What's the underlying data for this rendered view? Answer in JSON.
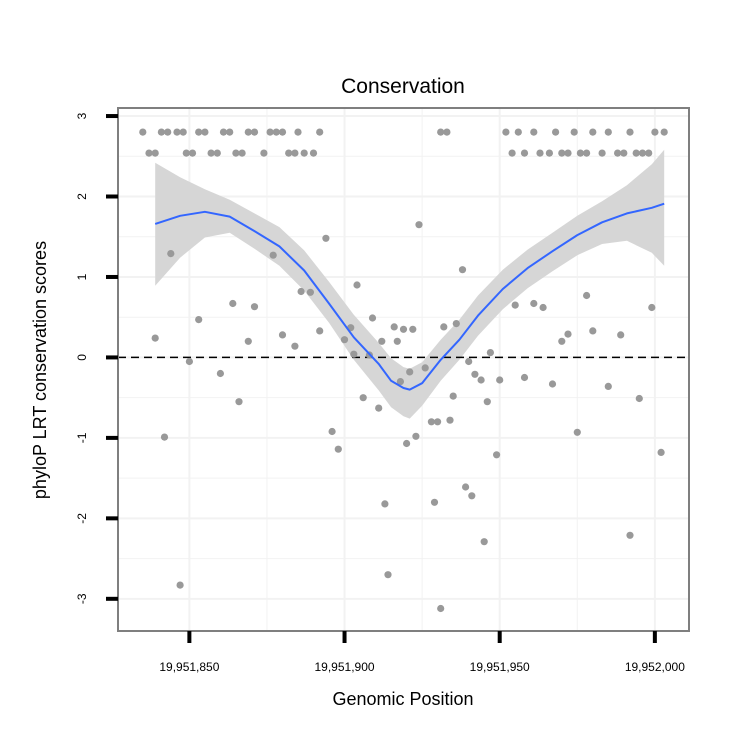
{
  "chart_data": {
    "type": "scatter",
    "title": "Conservation",
    "xlabel": "Genomic Position",
    "ylabel": "phyloP LRT conservation scores",
    "xlim": [
      19951827,
      19952011
    ],
    "ylim": [
      -3.4,
      3.1
    ],
    "x_ticks": [
      19951850,
      19951900,
      19951950,
      19952000
    ],
    "x_tick_labels": [
      "19,951,850",
      "19,951,900",
      "19,951,950",
      "19,952,000"
    ],
    "y_ticks": [
      -3,
      -2,
      -1,
      0,
      1,
      2,
      3
    ],
    "y_tick_labels": [
      "-3",
      "-2",
      "-1",
      "0",
      "1",
      "2",
      "3"
    ],
    "reference_line": {
      "y": 0,
      "style": "dashed"
    },
    "colors": {
      "points": "#999999",
      "smooth_line": "#3366FF",
      "confidence_band": "#d6d6d6",
      "grid": "#f2f2f2",
      "panel_border": "#7f7f7f"
    },
    "points": [
      [
        19951835,
        2.8
      ],
      [
        19951837,
        2.54
      ],
      [
        19951839,
        2.54
      ],
      [
        19951841,
        2.8
      ],
      [
        19951843,
        2.8
      ],
      [
        19951846,
        2.8
      ],
      [
        19951848,
        2.8
      ],
      [
        19951849,
        2.54
      ],
      [
        19951851,
        2.54
      ],
      [
        19951853,
        2.8
      ],
      [
        19951855,
        2.8
      ],
      [
        19951857,
        2.54
      ],
      [
        19951859,
        2.54
      ],
      [
        19951861,
        2.8
      ],
      [
        19951863,
        2.8
      ],
      [
        19951865,
        2.54
      ],
      [
        19951867,
        2.54
      ],
      [
        19951869,
        2.8
      ],
      [
        19951871,
        2.8
      ],
      [
        19951874,
        2.54
      ],
      [
        19951876,
        2.8
      ],
      [
        19951878,
        2.8
      ],
      [
        19951880,
        2.8
      ],
      [
        19951882,
        2.54
      ],
      [
        19951884,
        2.54
      ],
      [
        19951885,
        2.8
      ],
      [
        19951887,
        2.54
      ],
      [
        19951890,
        2.54
      ],
      [
        19951892,
        2.8
      ],
      [
        19951931,
        2.8
      ],
      [
        19951933,
        2.8
      ],
      [
        19951952,
        2.8
      ],
      [
        19951954,
        2.54
      ],
      [
        19951956,
        2.8
      ],
      [
        19951958,
        2.54
      ],
      [
        19951961,
        2.8
      ],
      [
        19951963,
        2.54
      ],
      [
        19951966,
        2.54
      ],
      [
        19951968,
        2.8
      ],
      [
        19951970,
        2.54
      ],
      [
        19951972,
        2.54
      ],
      [
        19951974,
        2.8
      ],
      [
        19951976,
        2.54
      ],
      [
        19951978,
        2.54
      ],
      [
        19951980,
        2.8
      ],
      [
        19951983,
        2.54
      ],
      [
        19951985,
        2.8
      ],
      [
        19951988,
        2.54
      ],
      [
        19951990,
        2.54
      ],
      [
        19951992,
        2.8
      ],
      [
        19951994,
        2.54
      ],
      [
        19951996,
        2.54
      ],
      [
        19951998,
        2.54
      ],
      [
        19952000,
        2.8
      ],
      [
        19952003,
        2.8
      ],
      [
        19951844,
        1.29
      ],
      [
        19951839,
        0.24
      ],
      [
        19951842,
        -0.99
      ],
      [
        19951847,
        -2.83
      ],
      [
        19951850,
        -0.05
      ],
      [
        19951853,
        0.47
      ],
      [
        19951860,
        -0.2
      ],
      [
        19951864,
        0.67
      ],
      [
        19951866,
        -0.55
      ],
      [
        19951869,
        0.2
      ],
      [
        19951871,
        0.63
      ],
      [
        19951877,
        1.27
      ],
      [
        19951880,
        0.28
      ],
      [
        19951884,
        0.14
      ],
      [
        19951886,
        0.82
      ],
      [
        19951889,
        0.81
      ],
      [
        19951892,
        0.33
      ],
      [
        19951894,
        1.48
      ],
      [
        19951896,
        -0.92
      ],
      [
        19951898,
        -1.14
      ],
      [
        19951900,
        0.22
      ],
      [
        19951902,
        0.37
      ],
      [
        19951903,
        0.04
      ],
      [
        19951904,
        0.9
      ],
      [
        19951906,
        -0.5
      ],
      [
        19951908,
        0.03
      ],
      [
        19951909,
        0.49
      ],
      [
        19951911,
        -0.63
      ],
      [
        19951912,
        0.2
      ],
      [
        19951913,
        -1.82
      ],
      [
        19951914,
        -2.7
      ],
      [
        19951916,
        0.38
      ],
      [
        19951917,
        0.2
      ],
      [
        19951918,
        -0.3
      ],
      [
        19951919,
        0.35
      ],
      [
        19951920,
        -1.07
      ],
      [
        19951921,
        -0.18
      ],
      [
        19951922,
        0.35
      ],
      [
        19951923,
        -0.98
      ],
      [
        19951924,
        1.65
      ],
      [
        19951926,
        -0.13
      ],
      [
        19951928,
        -0.8
      ],
      [
        19951929,
        -1.8
      ],
      [
        19951930,
        -0.8
      ],
      [
        19951931,
        -3.12
      ],
      [
        19951932,
        0.38
      ],
      [
        19951934,
        -0.78
      ],
      [
        19951935,
        -0.48
      ],
      [
        19951936,
        0.42
      ],
      [
        19951938,
        1.09
      ],
      [
        19951939,
        -1.61
      ],
      [
        19951940,
        -0.05
      ],
      [
        19951941,
        -1.72
      ],
      [
        19951942,
        -0.21
      ],
      [
        19951944,
        -0.28
      ],
      [
        19951945,
        -2.29
      ],
      [
        19951946,
        -0.55
      ],
      [
        19951947,
        0.06
      ],
      [
        19951949,
        -1.21
      ],
      [
        19951950,
        -0.28
      ],
      [
        19951955,
        0.65
      ],
      [
        19951958,
        -0.25
      ],
      [
        19951961,
        0.67
      ],
      [
        19951964,
        0.62
      ],
      [
        19951967,
        -0.33
      ],
      [
        19951970,
        0.2
      ],
      [
        19951972,
        0.29
      ],
      [
        19951975,
        -0.93
      ],
      [
        19951978,
        0.77
      ],
      [
        19951980,
        0.33
      ],
      [
        19951985,
        -0.36
      ],
      [
        19951989,
        0.28
      ],
      [
        19951992,
        -2.21
      ],
      [
        19951995,
        -0.51
      ],
      [
        19951999,
        0.62
      ],
      [
        19952002,
        -1.18
      ]
    ],
    "smooth_series": {
      "name": "loess fit",
      "x": [
        19951839,
        19951847,
        19951855,
        19951863,
        19951871,
        19951879,
        19951887,
        19951895,
        19951903,
        19951911,
        19951915,
        19951919,
        19951921,
        19951925,
        19951931,
        19951937,
        19951943,
        19951951,
        19951959,
        19951967,
        19951975,
        19951983,
        19951991,
        19951999,
        19952003
      ],
      "y": [
        1.66,
        1.76,
        1.81,
        1.75,
        1.57,
        1.38,
        1.08,
        0.67,
        0.25,
        -0.08,
        -0.29,
        -0.38,
        -0.4,
        -0.32,
        -0.03,
        0.22,
        0.52,
        0.85,
        1.11,
        1.32,
        1.52,
        1.68,
        1.79,
        1.86,
        1.91
      ],
      "upper": [
        2.42,
        2.24,
        2.09,
        1.96,
        1.79,
        1.62,
        1.33,
        0.94,
        0.53,
        0.18,
        -0.01,
        -0.12,
        -0.14,
        -0.06,
        0.22,
        0.47,
        0.77,
        1.09,
        1.34,
        1.55,
        1.76,
        1.94,
        2.14,
        2.4,
        2.58
      ],
      "lower": [
        0.89,
        1.24,
        1.49,
        1.55,
        1.35,
        1.14,
        0.83,
        0.43,
        -0.03,
        -0.41,
        -0.62,
        -0.73,
        -0.76,
        -0.6,
        -0.29,
        -0.03,
        0.27,
        0.6,
        0.86,
        1.07,
        1.27,
        1.41,
        1.45,
        1.3,
        1.14
      ]
    }
  }
}
